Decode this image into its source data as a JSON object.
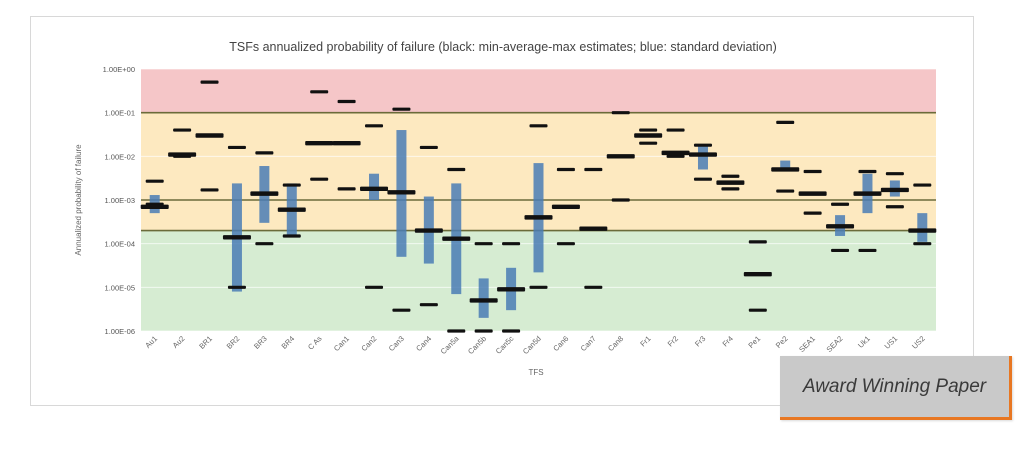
{
  "badge": {
    "text": "Award Winning Paper"
  },
  "chart_data": {
    "type": "range",
    "title": "TSFs annualized probability of failure (black: min-average-max estimates; blue: standard deviation)",
    "xlabel": "TFS",
    "ylabel": "Annualized probability of failure",
    "yscale": "log",
    "ylim": [
      1e-06,
      1
    ],
    "yticks": [
      "1.00E-06",
      "1.00E-05",
      "1.00E-04",
      "1.00E-03",
      "1.00E-02",
      "1.00E-01",
      "1.00E+00"
    ],
    "reference_lines": [
      0.1,
      0.001,
      0.0002
    ],
    "bands": [
      {
        "from": 0.1,
        "to": 1,
        "color": "#f5c6c8"
      },
      {
        "from": 0.0002,
        "to": 0.1,
        "color": "#fde9c0"
      },
      {
        "from": 1e-06,
        "to": 0.0002,
        "color": "#d6ecd2"
      }
    ],
    "colors": {
      "estimate": "#111111",
      "std": "#4a7db5",
      "line": "#6b6b3a"
    },
    "categories": [
      "Au1",
      "Au2",
      "BR1",
      "BR2",
      "BR3",
      "BR4",
      "C As",
      "Can1",
      "Can2",
      "Can3",
      "Can4",
      "Can5a",
      "Can5b",
      "Can5c",
      "Can5d",
      "Can6",
      "Can7",
      "Can8",
      "Fr1",
      "Fr2",
      "Fr3",
      "Fr4",
      "Pe1",
      "Pe2",
      "SEA1",
      "SEA2",
      "Uk1",
      "US1",
      "US2"
    ],
    "min": [
      0.0008,
      0.01,
      0.0017,
      1e-05,
      0.0001,
      0.00015,
      0.003,
      0.0018,
      1e-05,
      3e-06,
      4e-06,
      1e-06,
      1e-06,
      1e-06,
      1e-05,
      0.0001,
      1e-05,
      0.001,
      0.02,
      0.01,
      0.003,
      0.0018,
      3e-06,
      0.0016,
      0.0005,
      7e-05,
      7e-05,
      0.0007,
      0.0001
    ],
    "avg": [
      0.0007,
      0.011,
      0.03,
      0.00014,
      0.0014,
      0.0006,
      0.02,
      0.02,
      0.0018,
      0.0015,
      0.0002,
      0.00013,
      5e-06,
      9e-06,
      0.0004,
      0.0007,
      0.00022,
      0.01,
      0.03,
      0.012,
      0.011,
      0.0025,
      2e-05,
      0.005,
      0.0014,
      0.00025,
      0.0014,
      0.0017,
      0.0002
    ],
    "max": [
      0.0027,
      0.04,
      0.5,
      0.016,
      0.012,
      0.0022,
      0.3,
      0.18,
      0.05,
      0.12,
      0.016,
      0.005,
      0.0001,
      0.0001,
      0.05,
      0.005,
      0.005,
      0.1,
      0.04,
      0.04,
      0.018,
      0.0035,
      0.00011,
      0.06,
      0.0045,
      0.0008,
      0.0045,
      0.004,
      0.0022
    ],
    "std_low": [
      0.0005,
      null,
      null,
      8e-06,
      0.0003,
      0.00015,
      null,
      null,
      0.001,
      5e-05,
      3.5e-05,
      7e-06,
      2e-06,
      3e-06,
      2.2e-05,
      null,
      null,
      null,
      null,
      null,
      0.005,
      null,
      null,
      0.0045,
      null,
      0.00015,
      0.0005,
      0.0012,
      0.00011
    ],
    "std_high": [
      0.0013,
      null,
      null,
      0.0024,
      0.006,
      0.0024,
      null,
      null,
      0.004,
      0.04,
      0.0012,
      0.0024,
      1.6e-05,
      2.8e-05,
      0.007,
      null,
      null,
      null,
      null,
      null,
      0.019,
      null,
      null,
      0.008,
      null,
      0.00045,
      0.004,
      0.0028,
      0.0005
    ]
  }
}
